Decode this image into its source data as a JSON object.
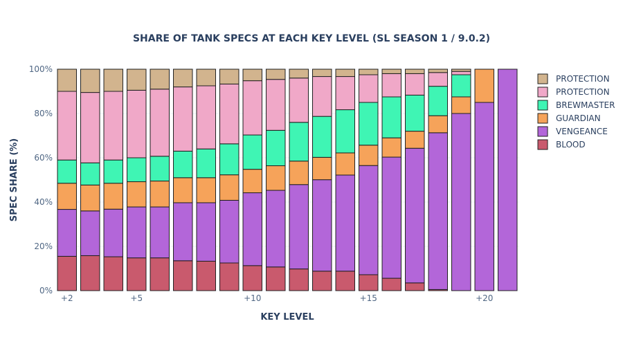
{
  "chart_data": {
    "type": "bar",
    "stacked": true,
    "title": "SHARE OF TANK SPECS AT EACH KEY LEVEL (SL SEASON 1 / 9.0.2)",
    "xlabel": "KEY LEVEL",
    "ylabel": "SPEC SHARE (%)",
    "ylim": [
      0,
      100
    ],
    "y_ticks": [
      "0%",
      "20%",
      "40%",
      "60%",
      "80%",
      "100%"
    ],
    "y_tick_values": [
      0,
      20,
      40,
      60,
      80,
      100
    ],
    "categories": [
      2,
      3,
      4,
      5,
      6,
      7,
      8,
      9,
      10,
      11,
      12,
      13,
      14,
      15,
      16,
      17,
      18,
      19,
      20,
      21
    ],
    "x_tick_labels": [
      {
        "category": 2,
        "label": "+2"
      },
      {
        "category": 5,
        "label": "+5"
      },
      {
        "category": 10,
        "label": "+10"
      },
      {
        "category": 15,
        "label": "+15"
      },
      {
        "category": 20,
        "label": "+20"
      }
    ],
    "legend_position": "right",
    "grid": true,
    "series": [
      {
        "name": "BLOOD",
        "color": "#c95a6d",
        "values": [
          15.5,
          15.8,
          15.3,
          14.8,
          14.8,
          13.5,
          13.3,
          12.5,
          11.3,
          10.7,
          9.8,
          8.8,
          8.8,
          7.2,
          5.6,
          3.5,
          0.5,
          0,
          0,
          0
        ]
      },
      {
        "name": "VENGEANCE",
        "color": "#b366d9",
        "values": [
          21.2,
          20.2,
          21.5,
          23.0,
          23.0,
          26.2,
          26.4,
          28.3,
          32.9,
          34.6,
          38.1,
          41.3,
          43.4,
          49.3,
          54.7,
          60.8,
          70.8,
          80.0,
          85.0,
          100.0
        ]
      },
      {
        "name": "GUARDIAN",
        "color": "#f6a35a",
        "values": [
          11.8,
          11.7,
          11.7,
          11.4,
          11.7,
          11.3,
          11.3,
          11.5,
          10.6,
          11.1,
          10.6,
          10.1,
          10.0,
          9.2,
          8.7,
          7.7,
          7.7,
          7.5,
          15.0,
          0
        ]
      },
      {
        "name": "BREWMASTER",
        "color": "#3ff5b4",
        "values": [
          10.5,
          10.0,
          10.5,
          10.8,
          11.2,
          12.0,
          13.0,
          14.0,
          15.5,
          16.0,
          17.5,
          18.5,
          19.5,
          19.3,
          18.5,
          16.3,
          13.3,
          10.0,
          0,
          0
        ]
      },
      {
        "name": "PROTECTION",
        "color": "#f0a8c8",
        "values": [
          31.0,
          31.8,
          31.0,
          30.5,
          30.3,
          29.0,
          28.5,
          27.0,
          24.5,
          23.0,
          20.0,
          18.0,
          15.0,
          12.5,
          10.5,
          9.7,
          6.2,
          1.5,
          0,
          0
        ]
      },
      {
        "name": "PROTECTION",
        "color": "#d2b48e",
        "values": [
          10.0,
          10.5,
          10.0,
          9.5,
          9.0,
          8.0,
          7.5,
          6.7,
          5.2,
          4.6,
          4.0,
          3.3,
          3.3,
          2.5,
          2.0,
          2.0,
          1.5,
          1.0,
          0,
          0
        ]
      }
    ]
  }
}
